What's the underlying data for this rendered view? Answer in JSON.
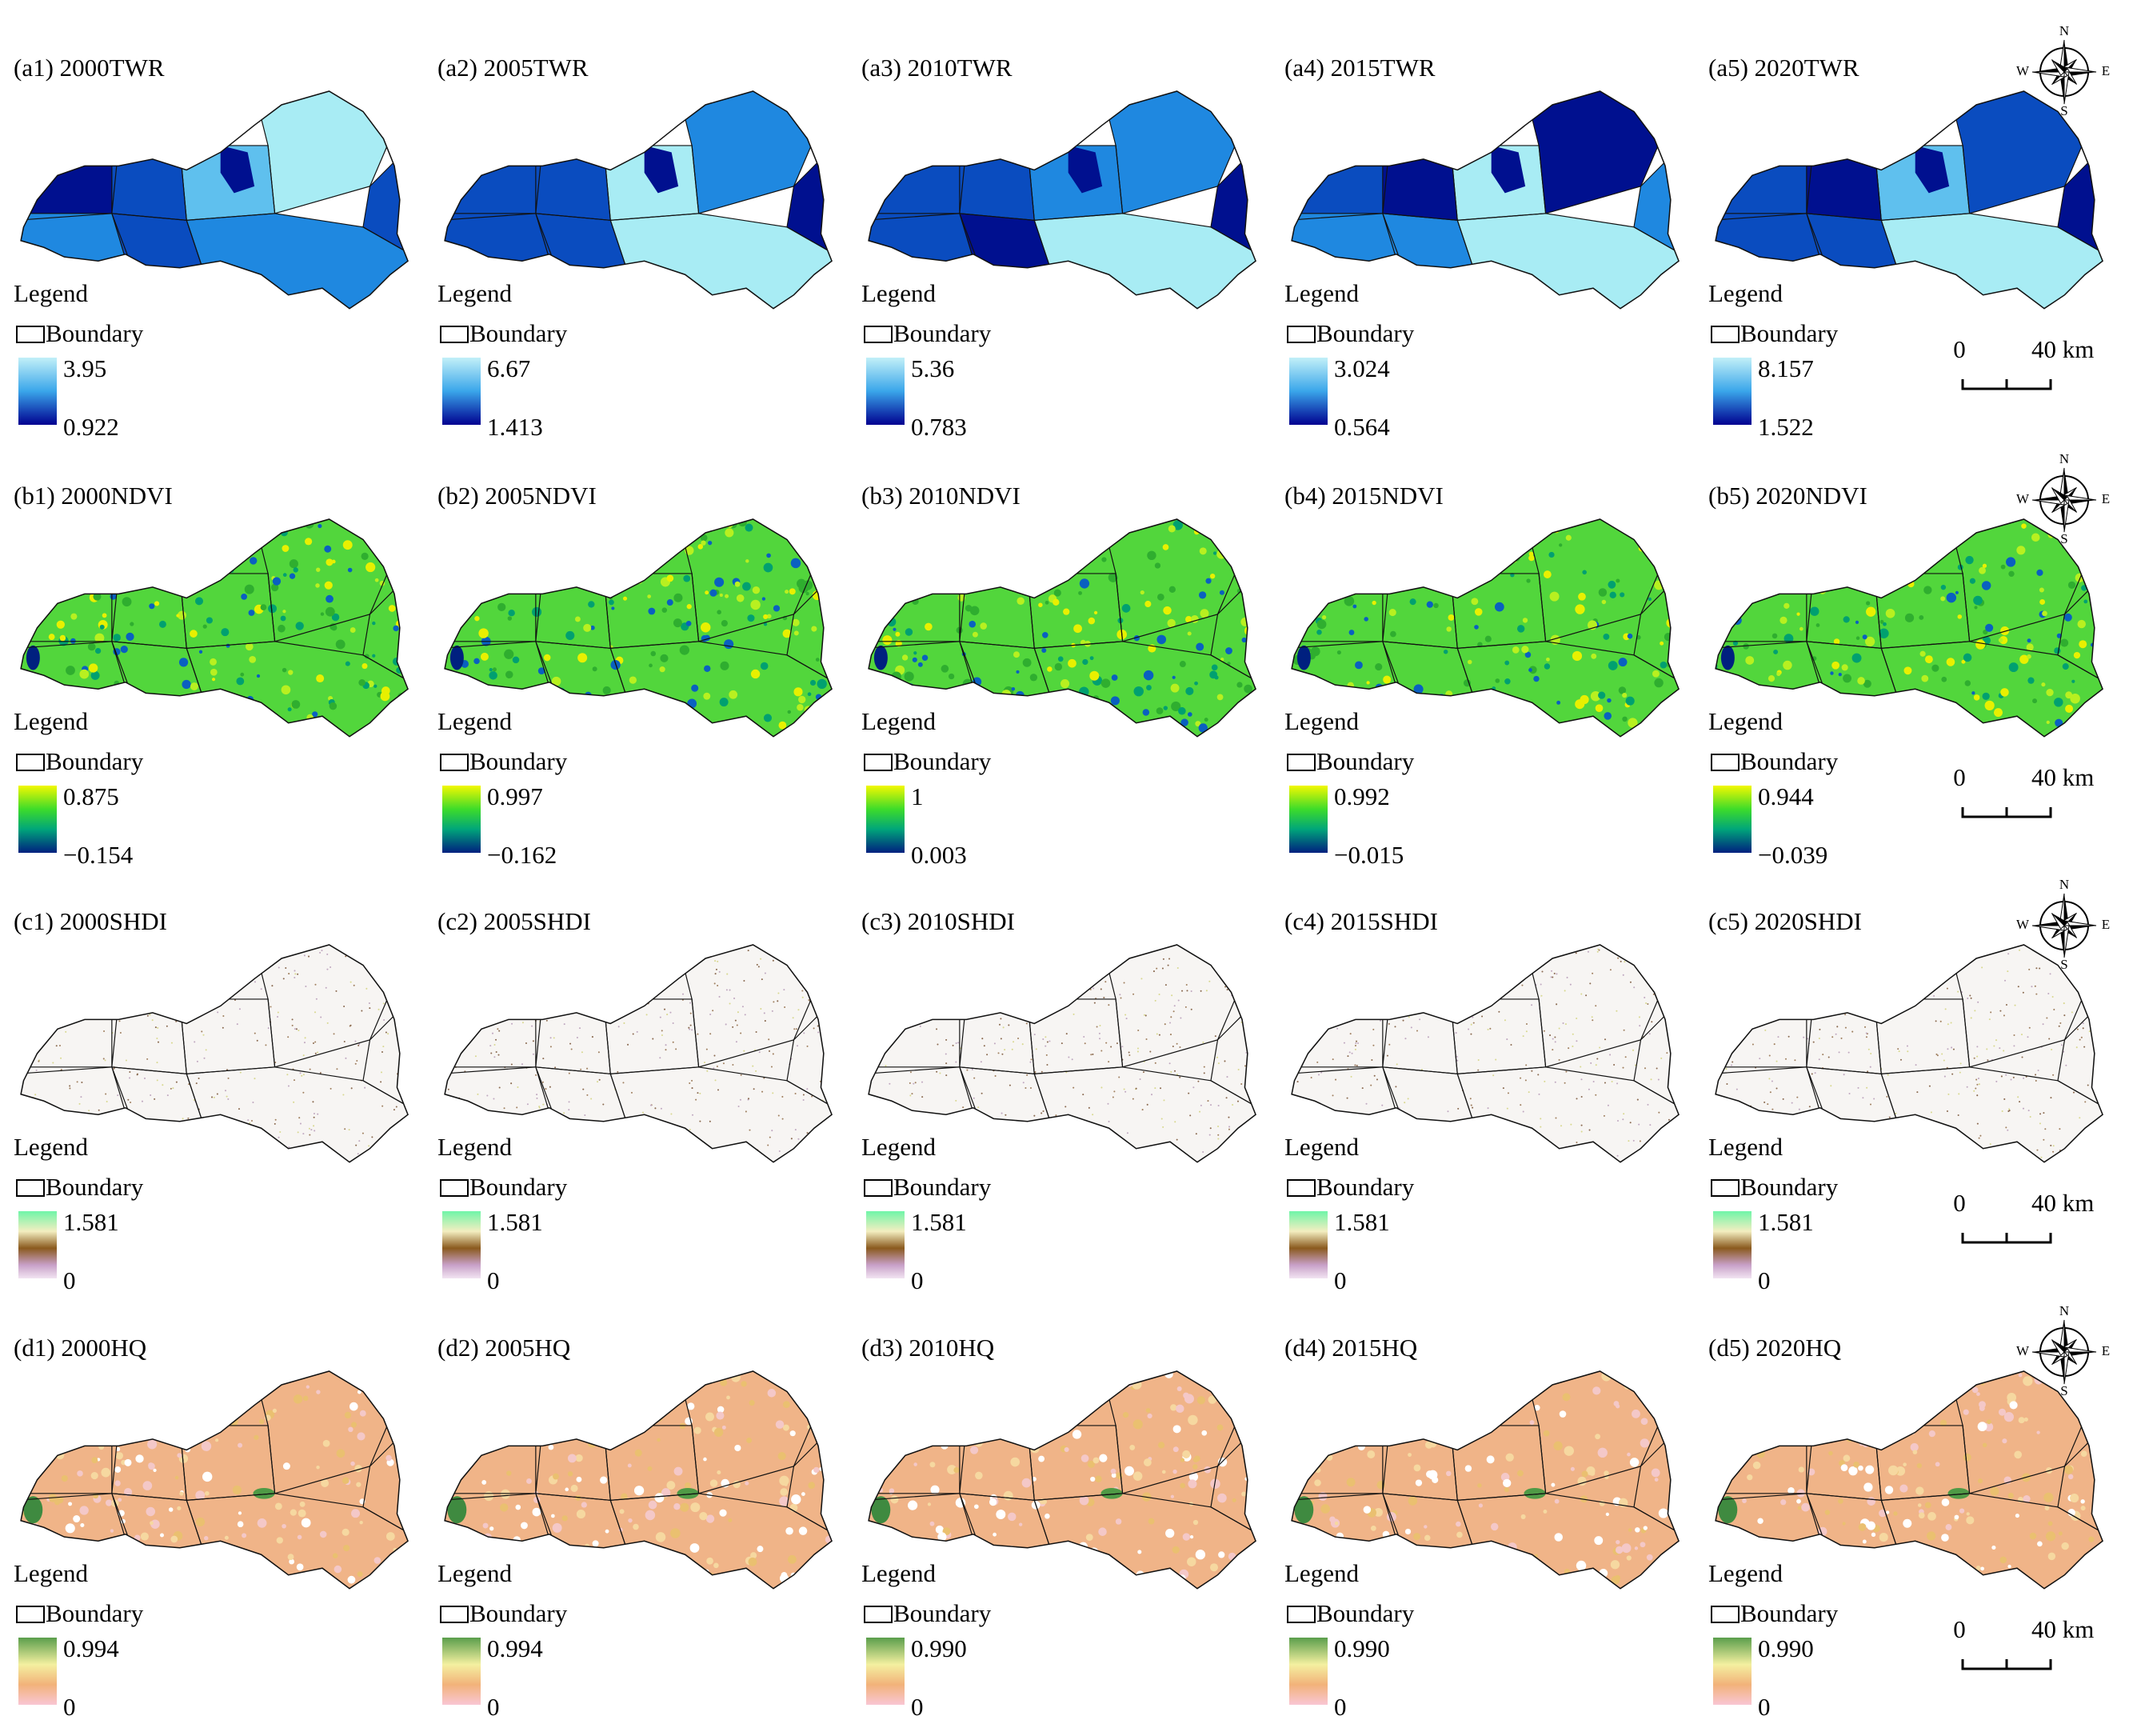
{
  "legend_title": "Legend",
  "boundary_label": "Boundary",
  "compass": {
    "n": "N",
    "e": "E",
    "s": "S",
    "w": "W"
  },
  "scale_bar": {
    "start": "0",
    "end": "40 km"
  },
  "rows": [
    {
      "panels": [
        {
          "title": "(a1) 2000TWR",
          "max": "3.95",
          "min": "0.922"
        },
        {
          "title": "(a2) 2005TWR",
          "max": "6.67",
          "min": "1.413"
        },
        {
          "title": "(a3) 2010TWR",
          "max": "5.36",
          "min": "0.783"
        },
        {
          "title": "(a4) 2015TWR",
          "max": "3.024",
          "min": "0.564"
        },
        {
          "title": "(a5) 2020TWR",
          "max": "8.157",
          "min": "1.522"
        }
      ]
    },
    {
      "panels": [
        {
          "title": "(b1) 2000NDVI",
          "max": "0.875",
          "min": "−0.154"
        },
        {
          "title": "(b2) 2005NDVI",
          "max": "0.997",
          "min": "−0.162"
        },
        {
          "title": "(b3) 2010NDVI",
          "max": "1",
          "min": "0.003"
        },
        {
          "title": "(b4) 2015NDVI",
          "max": "0.992",
          "min": "−0.015"
        },
        {
          "title": "(b5) 2020NDVI",
          "max": "0.944",
          "min": "−0.039"
        }
      ]
    },
    {
      "panels": [
        {
          "title": "(c1) 2000SHDI",
          "max": "1.581",
          "min": "0"
        },
        {
          "title": "(c2) 2005SHDI",
          "max": "1.581",
          "min": "0"
        },
        {
          "title": "(c3) 2010SHDI",
          "max": "1.581",
          "min": "0"
        },
        {
          "title": "(c4) 2015SHDI",
          "max": "1.581",
          "min": "0"
        },
        {
          "title": "(c5) 2020SHDI",
          "max": "1.581",
          "min": "0"
        }
      ]
    },
    {
      "panels": [
        {
          "title": "(d1) 2000HQ",
          "max": "0.994",
          "min": "0"
        },
        {
          "title": "(d2) 2005HQ",
          "max": "0.994",
          "min": "0"
        },
        {
          "title": "(d3) 2010HQ",
          "max": "0.990",
          "min": "0"
        },
        {
          "title": "(d4) 2015HQ",
          "max": "0.990",
          "min": "0"
        },
        {
          "title": "(d5) 2020HQ",
          "max": "0.990",
          "min": "0"
        }
      ]
    }
  ]
}
